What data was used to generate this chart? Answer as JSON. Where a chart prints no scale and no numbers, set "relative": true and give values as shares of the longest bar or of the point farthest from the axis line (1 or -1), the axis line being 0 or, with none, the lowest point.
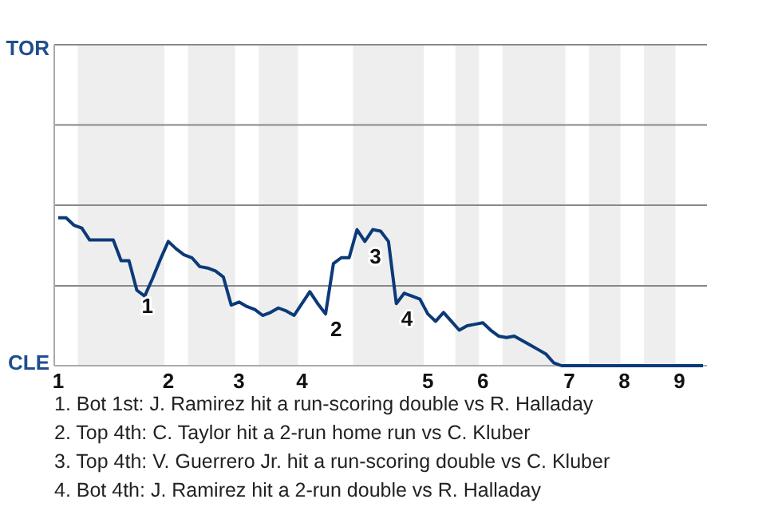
{
  "chart_data": {
    "type": "line",
    "relative": true,
    "categories": [
      "1",
      null,
      null,
      null,
      null,
      null,
      null,
      null,
      null,
      null,
      null,
      null,
      null,
      null,
      "2",
      null,
      null,
      null,
      null,
      null,
      null,
      null,
      null,
      "3",
      null,
      null,
      null,
      null,
      null,
      null,
      null,
      "4",
      null,
      null,
      null,
      null,
      null,
      null,
      null,
      null,
      null,
      null,
      null,
      null,
      null,
      null,
      null,
      "5",
      null,
      null,
      null,
      null,
      null,
      null,
      "6",
      null,
      null,
      null,
      null,
      null,
      null,
      null,
      null,
      null,
      null,
      "7",
      null,
      null,
      null,
      null,
      null,
      null,
      "8",
      null,
      null,
      null,
      null,
      null,
      null,
      "9",
      null,
      null,
      null
    ],
    "series": [
      {
        "color": "#0b3a78",
        "values": [
          1,
          1,
          0.95,
          0.93,
          0.85,
          0.85,
          0.85,
          0.85,
          0.71,
          0.71,
          0.51,
          0.47,
          0.59,
          0.72,
          0.84,
          0.79,
          0.75,
          0.73,
          0.67,
          0.66,
          0.64,
          0.6,
          0.41,
          0.43,
          0.4,
          0.38,
          0.34,
          0.36,
          0.39,
          0.37,
          0.34,
          0.42,
          0.5,
          0.42,
          0.35,
          0.69,
          0.73,
          0.73,
          0.92,
          0.84,
          0.92,
          0.91,
          0.84,
          0.42,
          0.49,
          0.47,
          0.45,
          0.35,
          0.3,
          0.36,
          0.3,
          0.24,
          0.27,
          0.28,
          0.29,
          0.24,
          0.2,
          0.19,
          0.2,
          0.17,
          0.14,
          0.11,
          0.08,
          0.02,
          0,
          0,
          0,
          0,
          0,
          0,
          0,
          0,
          0,
          0,
          0,
          0,
          0,
          0,
          0,
          0,
          0,
          0,
          0
        ]
      }
    ],
    "marker": "none",
    "line_style": "solid",
    "ref_lines": [
      {
        "axis": "y",
        "value": 0.54,
        "color": "#888888"
      }
    ],
    "annotations": [
      "TOR",
      "CLE",
      "1",
      "2",
      "3",
      "4",
      "1. Bot 1st: J. Ramirez hit a run-scoring double vs R. Halladay",
      "2. Top 4th: C. Taylor hit a 2-run home run vs C. Kluber",
      "3. Top 4th: V. Guerrero Jr. hit a run-scoring double vs C. Kluber",
      "4. Bot 4th: J. Ramirez hit a 2-run double vs R. Halladay"
    ]
  }
}
